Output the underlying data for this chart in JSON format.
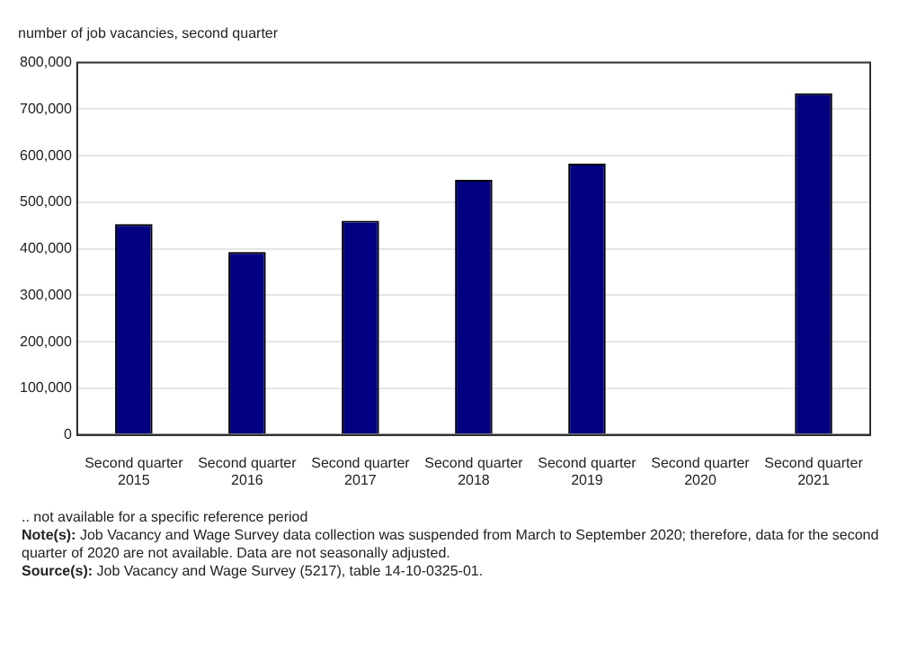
{
  "chart_data": {
    "type": "bar",
    "ylabel": "number of job vacancies, second quarter",
    "categories": [
      "Second quarter 2015",
      "Second quarter 2016",
      "Second quarter 2017",
      "Second quarter 2018",
      "Second quarter 2019",
      "Second quarter 2020",
      "Second quarter 2021"
    ],
    "values": [
      453000,
      393000,
      460000,
      548000,
      583000,
      null,
      734000
    ],
    "color": "#000080",
    "ylim": [
      0,
      800000
    ],
    "yticks": [
      {
        "value": 0,
        "label": "0"
      },
      {
        "value": 100000,
        "label": "100,000"
      },
      {
        "value": 200000,
        "label": "200,000"
      },
      {
        "value": 300000,
        "label": "300,000"
      },
      {
        "value": 400000,
        "label": "400,000"
      },
      {
        "value": 500000,
        "label": "500,000"
      },
      {
        "value": 600000,
        "label": "600,000"
      },
      {
        "value": 700000,
        "label": "700,000"
      },
      {
        "value": 800000,
        "label": "800,000"
      }
    ],
    "grid": "y",
    "legend": false,
    "annotations": [
      ".. not available for a specific reference period",
      "Note(s): Job Vacancy and Wage Survey data collection was suspended from March to September 2020; therefore, data for the second quarter of 2020 are not available. Data are not seasonally adjusted.",
      "Source(s): Job Vacancy and Wage Survey (5217), table 14-10-0325-01."
    ]
  }
}
